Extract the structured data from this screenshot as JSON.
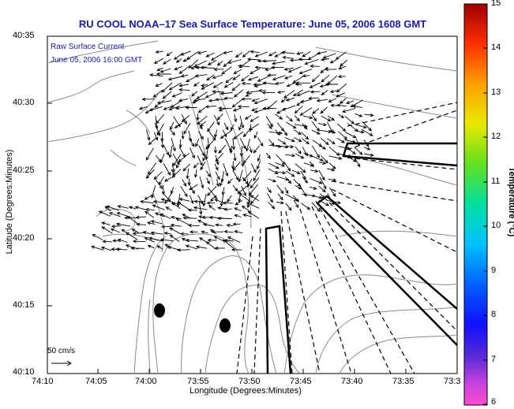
{
  "title": "RU COOL  NOAA–17  Sea Surface Temperature:  June 05, 2006 1608 GMT",
  "legend": {
    "line1": "Raw Surface Current",
    "line2": "June 05, 2006 16:00 GMT"
  },
  "axes": {
    "ylabel": "Latitude (Degrees:Minutes)",
    "xlabel": "Longitude (Degrees:Minutes)",
    "yticks": [
      "40:35",
      "40:30",
      "40:25",
      "40:20",
      "40:15",
      "40:10"
    ],
    "xticks": [
      "74:10",
      "74:05",
      "74:00",
      "73:55",
      "73:50",
      "73:45",
      "73:40",
      "73:35",
      "73:3"
    ]
  },
  "colorbar": {
    "label": "Temperature (°C)",
    "ticks": [
      "15",
      "14",
      "13",
      "12",
      "11",
      "10",
      "9",
      "8",
      "7",
      "6"
    ]
  },
  "scale_arrow_label": "50 cm/s",
  "colors": {
    "title": "#1a1aa6",
    "contour": "#8a8a8a",
    "arrow": "#000000"
  }
}
